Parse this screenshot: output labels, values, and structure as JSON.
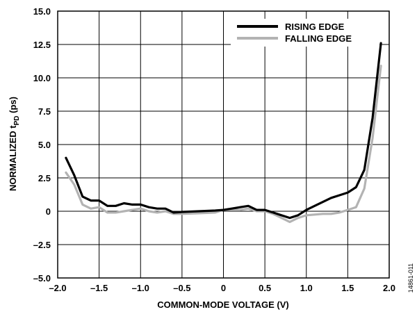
{
  "chart_data": {
    "type": "line",
    "title": "",
    "xlabel": "COMMON-MODE VOLTAGE (V)",
    "ylabel_main": "NORMALIZED t",
    "ylabel_sub": "PD",
    "ylabel_unit": " (ps)",
    "xlim": [
      -2.0,
      2.0
    ],
    "ylim": [
      -5.0,
      15.0
    ],
    "grid": true,
    "legend_placement": "top-right",
    "x_ticks": [
      {
        "value": -2.0,
        "label": "–2.0"
      },
      {
        "value": -1.5,
        "label": "–1.5"
      },
      {
        "value": -1.0,
        "label": "–1.0"
      },
      {
        "value": -0.5,
        "label": "–0.5"
      },
      {
        "value": 0,
        "label": "0"
      },
      {
        "value": 0.5,
        "label": "0.5"
      },
      {
        "value": 1.0,
        "label": "1.0"
      },
      {
        "value": 1.5,
        "label": "1.5"
      },
      {
        "value": 2.0,
        "label": "2.0"
      }
    ],
    "y_ticks": [
      {
        "value": -5.0,
        "label": "–5.0"
      },
      {
        "value": -2.5,
        "label": "–2.5"
      },
      {
        "value": 0,
        "label": "0"
      },
      {
        "value": 2.5,
        "label": "2.5"
      },
      {
        "value": 5.0,
        "label": "5.0"
      },
      {
        "value": 7.5,
        "label": "7.5"
      },
      {
        "value": 10.0,
        "label": "10.0"
      },
      {
        "value": 12.5,
        "label": "12.5"
      },
      {
        "value": 15.0,
        "label": "15.0"
      }
    ],
    "series": [
      {
        "name": "RISING EDGE",
        "color": "#000000",
        "points": [
          [
            -1.9,
            4.0
          ],
          [
            -1.8,
            2.7
          ],
          [
            -1.7,
            1.1
          ],
          [
            -1.6,
            0.8
          ],
          [
            -1.5,
            0.8
          ],
          [
            -1.4,
            0.4
          ],
          [
            -1.3,
            0.4
          ],
          [
            -1.2,
            0.6
          ],
          [
            -1.1,
            0.5
          ],
          [
            -1.0,
            0.5
          ],
          [
            -0.9,
            0.3
          ],
          [
            -0.8,
            0.2
          ],
          [
            -0.7,
            0.2
          ],
          [
            -0.6,
            -0.1
          ],
          [
            -0.5,
            -0.05
          ],
          [
            -0.3,
            0.0
          ],
          [
            -0.1,
            0.05
          ],
          [
            0.0,
            0.1
          ],
          [
            0.1,
            0.2
          ],
          [
            0.2,
            0.3
          ],
          [
            0.3,
            0.4
          ],
          [
            0.4,
            0.1
          ],
          [
            0.5,
            0.1
          ],
          [
            0.6,
            -0.1
          ],
          [
            0.7,
            -0.3
          ],
          [
            0.8,
            -0.5
          ],
          [
            0.9,
            -0.3
          ],
          [
            1.0,
            0.1
          ],
          [
            1.1,
            0.4
          ],
          [
            1.2,
            0.7
          ],
          [
            1.3,
            1.0
          ],
          [
            1.4,
            1.2
          ],
          [
            1.5,
            1.4
          ],
          [
            1.6,
            1.8
          ],
          [
            1.7,
            3.1
          ],
          [
            1.8,
            7.0
          ],
          [
            1.9,
            12.6
          ]
        ]
      },
      {
        "name": "FALLING EDGE",
        "color": "#b3b3b3",
        "points": [
          [
            -1.9,
            2.9
          ],
          [
            -1.8,
            2.0
          ],
          [
            -1.7,
            0.5
          ],
          [
            -1.6,
            0.2
          ],
          [
            -1.5,
            0.3
          ],
          [
            -1.4,
            -0.1
          ],
          [
            -1.3,
            -0.1
          ],
          [
            -1.2,
            0.0
          ],
          [
            -1.1,
            0.1
          ],
          [
            -1.0,
            0.2
          ],
          [
            -0.9,
            0.0
          ],
          [
            -0.8,
            -0.1
          ],
          [
            -0.7,
            0.0
          ],
          [
            -0.6,
            -0.2
          ],
          [
            -0.5,
            -0.2
          ],
          [
            -0.3,
            -0.15
          ],
          [
            -0.1,
            -0.1
          ],
          [
            0.0,
            0.1
          ],
          [
            0.1,
            0.1
          ],
          [
            0.2,
            0.1
          ],
          [
            0.3,
            0.2
          ],
          [
            0.4,
            0.0
          ],
          [
            0.5,
            0.0
          ],
          [
            0.6,
            -0.2
          ],
          [
            0.7,
            -0.5
          ],
          [
            0.8,
            -0.8
          ],
          [
            0.9,
            -0.5
          ],
          [
            1.0,
            -0.3
          ],
          [
            1.1,
            -0.25
          ],
          [
            1.2,
            -0.2
          ],
          [
            1.3,
            -0.2
          ],
          [
            1.4,
            -0.1
          ],
          [
            1.5,
            0.1
          ],
          [
            1.6,
            0.3
          ],
          [
            1.7,
            1.7
          ],
          [
            1.8,
            5.5
          ],
          [
            1.9,
            10.9
          ]
        ]
      }
    ]
  },
  "figure_id": "14861-011"
}
